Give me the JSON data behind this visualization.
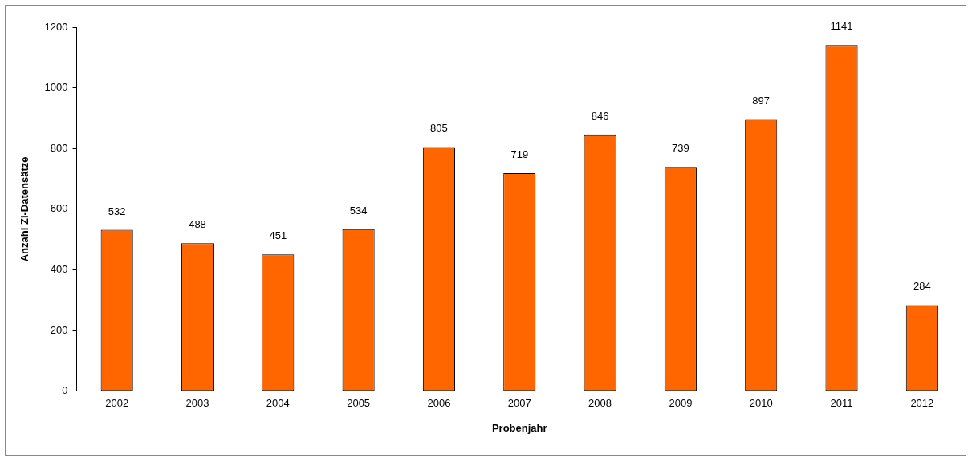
{
  "chart_data": {
    "type": "bar",
    "xlabel": "Probenjahr",
    "ylabel": "Anzahl ZI-Datensätze",
    "categories": [
      "2002",
      "2003",
      "2004",
      "2005",
      "2006",
      "2007",
      "2008",
      "2009",
      "2010",
      "2011",
      "2012"
    ],
    "values": [
      532,
      488,
      451,
      534,
      805,
      719,
      846,
      739,
      897,
      1141,
      284
    ],
    "color": "#ff6600",
    "ylim": [
      0,
      1200
    ],
    "yticks": [
      0,
      200,
      400,
      600,
      800,
      1000,
      1200
    ],
    "grid": false,
    "legend": false,
    "data_labels": true
  }
}
